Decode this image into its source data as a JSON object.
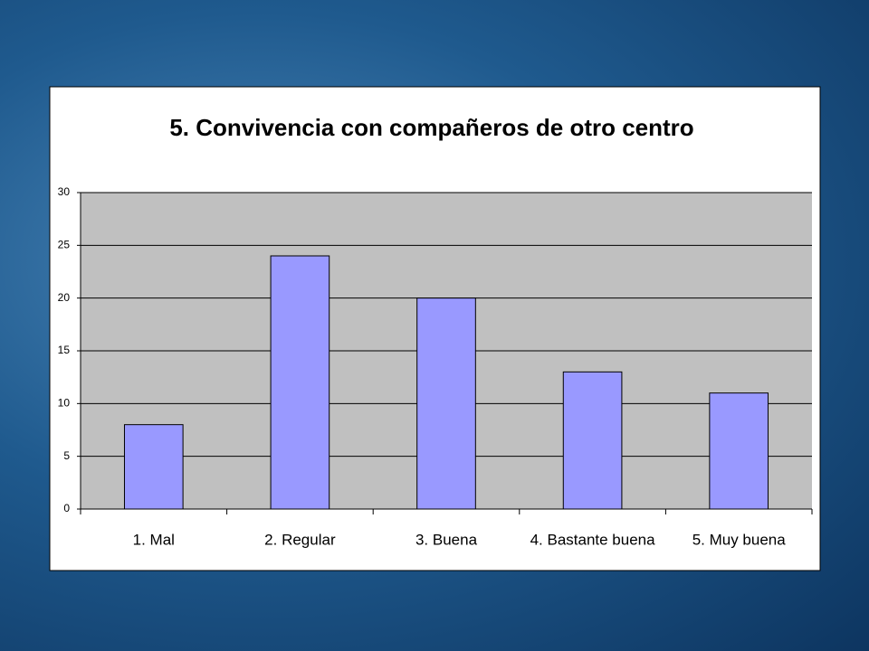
{
  "chart_data": {
    "type": "bar",
    "title": "5. Convivencia con compañeros de otro centro",
    "categories": [
      "1. Mal",
      "2. Regular",
      "3. Buena",
      "4. Bastante buena",
      "5. Muy buena"
    ],
    "values": [
      8,
      24,
      20,
      13,
      11
    ],
    "color": "#9999ff",
    "ylim": [
      0,
      30
    ],
    "yticks": [
      0,
      5,
      10,
      15,
      20,
      25,
      30
    ],
    "grid": true
  }
}
